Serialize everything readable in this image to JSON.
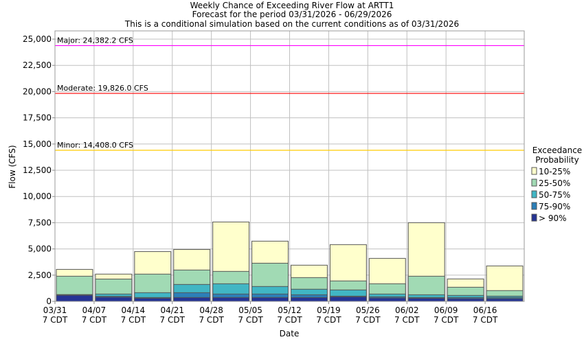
{
  "chart_data": {
    "type": "bar",
    "stacked": true,
    "title": [
      "Weekly Chance of Exceeding River Flow at ARTT1",
      "Forecast for the period 03/31/2026 - 06/29/2026",
      "This is a conditional simulation based on the current conditions as of 03/31/2026"
    ],
    "xlabel": "Date",
    "ylabel": "Flow (CFS)",
    "ylim": [
      0,
      25000
    ],
    "yticks": [
      0,
      2500,
      5000,
      7500,
      10000,
      12500,
      15000,
      17500,
      20000,
      22500,
      25000
    ],
    "ytick_labels": [
      "0",
      "2,500",
      "5,000",
      "7,500",
      "10,000",
      "12,500",
      "15,000",
      "17,500",
      "20,000",
      "22,500",
      "25,000"
    ],
    "grid": true,
    "categories": [
      "03/31",
      "04/07",
      "04/14",
      "04/21",
      "04/28",
      "05/05",
      "05/12",
      "05/19",
      "05/26",
      "06/02",
      "06/09",
      "06/16"
    ],
    "tick_sublabel": "7 CDT",
    "legend": {
      "title": [
        "Exceedance",
        "Probability"
      ],
      "placement": "right"
    },
    "series": [
      {
        "name": "10-25%",
        "color": "#ffffcc",
        "values": [
          3050,
          2600,
          4750,
          4950,
          7570,
          5740,
          3450,
          5410,
          4100,
          7500,
          2140,
          3380
        ]
      },
      {
        "name": "25-50%",
        "color": "#a1dab4",
        "values": [
          2400,
          2130,
          2600,
          2990,
          2860,
          3640,
          2270,
          1950,
          1680,
          2400,
          1350,
          1030
        ]
      },
      {
        "name": "50-75%",
        "color": "#41b6c4",
        "values": [
          650,
          700,
          830,
          1615,
          1680,
          1420,
          1160,
          1090,
          700,
          630,
          570,
          500
        ]
      },
      {
        "name": "75-90%",
        "color": "#2c7fb8",
        "values": [
          620,
          480,
          370,
          830,
          700,
          700,
          630,
          500,
          440,
          370,
          370,
          370
        ]
      },
      {
        "name": "> 90%",
        "color": "#253494",
        "values": [
          580,
          400,
          300,
          370,
          370,
          370,
          370,
          440,
          330,
          300,
          260,
          260
        ]
      }
    ],
    "thresholds": [
      {
        "label": "Major: 24,382.2 CFS",
        "value": 24382.2,
        "color": "#ff00ff"
      },
      {
        "label": "Moderate: 19,826.0 CFS",
        "value": 19826.0,
        "color": "#ff0000"
      },
      {
        "label": "Minor: 14,408.0 CFS",
        "value": 14408.0,
        "color": "#ffcc00"
      }
    ]
  }
}
